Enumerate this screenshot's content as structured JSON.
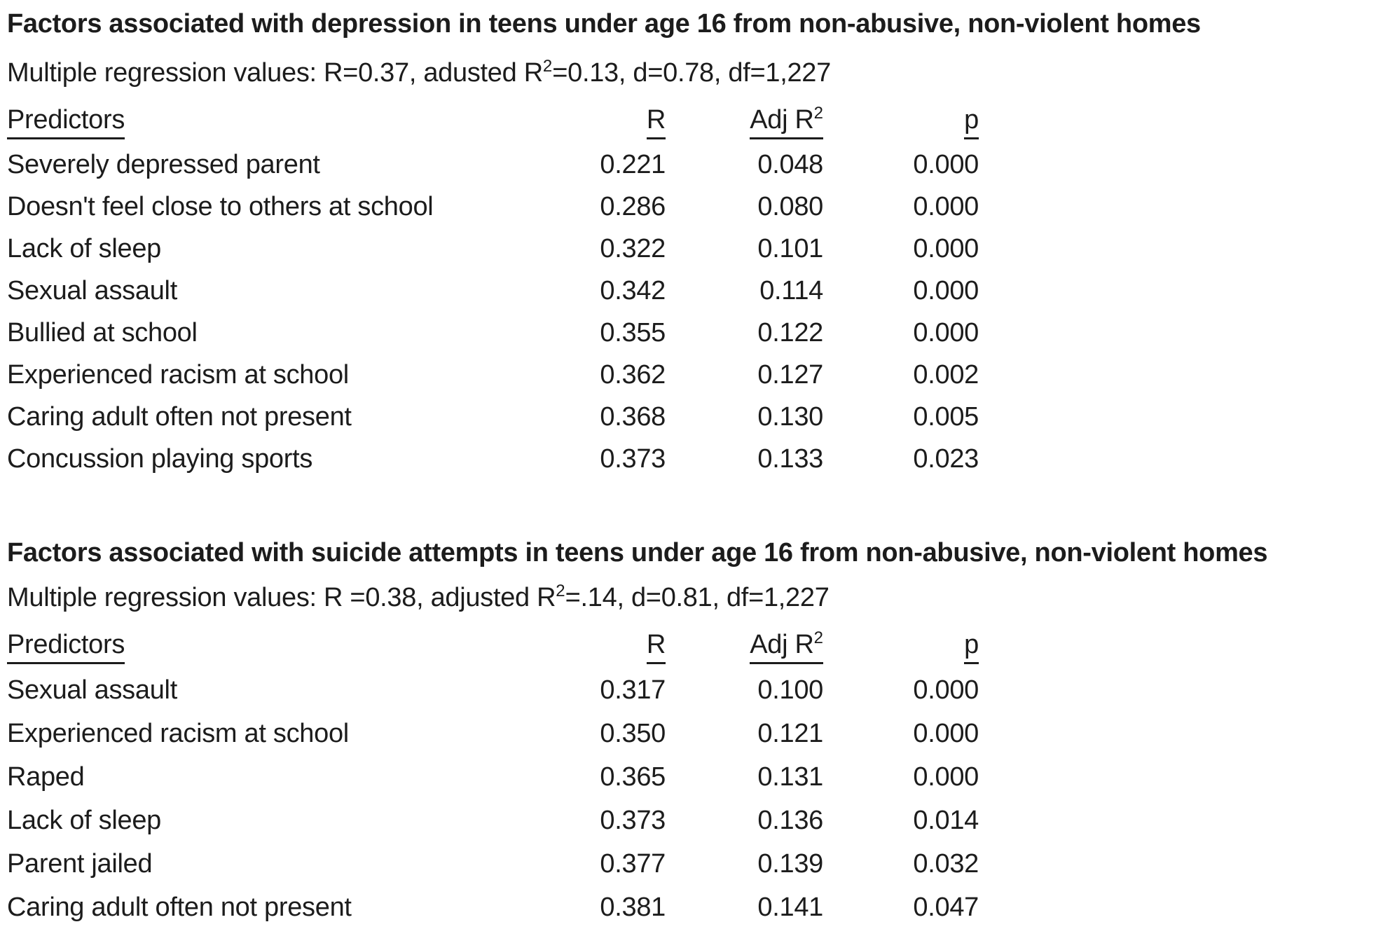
{
  "page": {
    "background": "#ffffff",
    "text_color": "#1c1c1c"
  },
  "tables": [
    {
      "title": "Factors associated with depression in teens under age 16 from non-abusive, non-violent homes",
      "subtitle_prefix": "Multiple regression values: R=0.37, adusted R",
      "subtitle_sup": "2",
      "subtitle_suffix": "=0.13, d=0.78, df=1,227",
      "headers": {
        "predictors": "Predictors",
        "r": "R",
        "adj_prefix": "Adj R",
        "adj_sup": "2",
        "p": "p"
      },
      "rows": [
        {
          "predictor": "Severely depressed parent",
          "r": "0.221",
          "adj_r2": "0.048",
          "p": "0.000"
        },
        {
          "predictor": "Doesn't feel close to others at school",
          "r": "0.286",
          "adj_r2": "0.080",
          "p": "0.000"
        },
        {
          "predictor": "Lack of sleep",
          "r": "0.322",
          "adj_r2": "0.101",
          "p": "0.000"
        },
        {
          "predictor": "Sexual assault",
          "r": "0.342",
          "adj_r2": "0.114",
          "p": "0.000"
        },
        {
          "predictor": "Bullied at school",
          "r": "0.355",
          "adj_r2": "0.122",
          "p": "0.000"
        },
        {
          "predictor": "Experienced racism at school",
          "r": "0.362",
          "adj_r2": "0.127",
          "p": "0.002"
        },
        {
          "predictor": "Caring adult often not present",
          "r": "0.368",
          "adj_r2": "0.130",
          "p": "0.005"
        },
        {
          "predictor": "Concussion playing sports",
          "r": "0.373",
          "adj_r2": "0.133",
          "p": "0.023"
        }
      ]
    },
    {
      "title": "Factors associated with suicide attempts in teens under age 16 from non-abusive, non-violent homes",
      "subtitle_prefix": "Multiple regression values: R =0.38, adjusted R",
      "subtitle_sup": "2",
      "subtitle_suffix": "=.14, d=0.81, df=1,227",
      "headers": {
        "predictors": "Predictors",
        "r": "R",
        "adj_prefix": "Adj R",
        "adj_sup": "2",
        "p": "p"
      },
      "rows": [
        {
          "predictor": "Sexual assault",
          "r": "0.317",
          "adj_r2": "0.100",
          "p": "0.000"
        },
        {
          "predictor": "Experienced racism at school",
          "r": "0.350",
          "adj_r2": "0.121",
          "p": "0.000"
        },
        {
          "predictor": "Raped",
          "r": "0.365",
          "adj_r2": "0.131",
          "p": "0.000"
        },
        {
          "predictor": "Lack of sleep",
          "r": "0.373",
          "adj_r2": "0.136",
          "p": "0.014"
        },
        {
          "predictor": "Parent jailed",
          "r": "0.377",
          "adj_r2": "0.139",
          "p": "0.032"
        },
        {
          "predictor": "Caring adult often not present",
          "r": "0.381",
          "adj_r2": "0.141",
          "p": "0.047"
        }
      ]
    }
  ]
}
